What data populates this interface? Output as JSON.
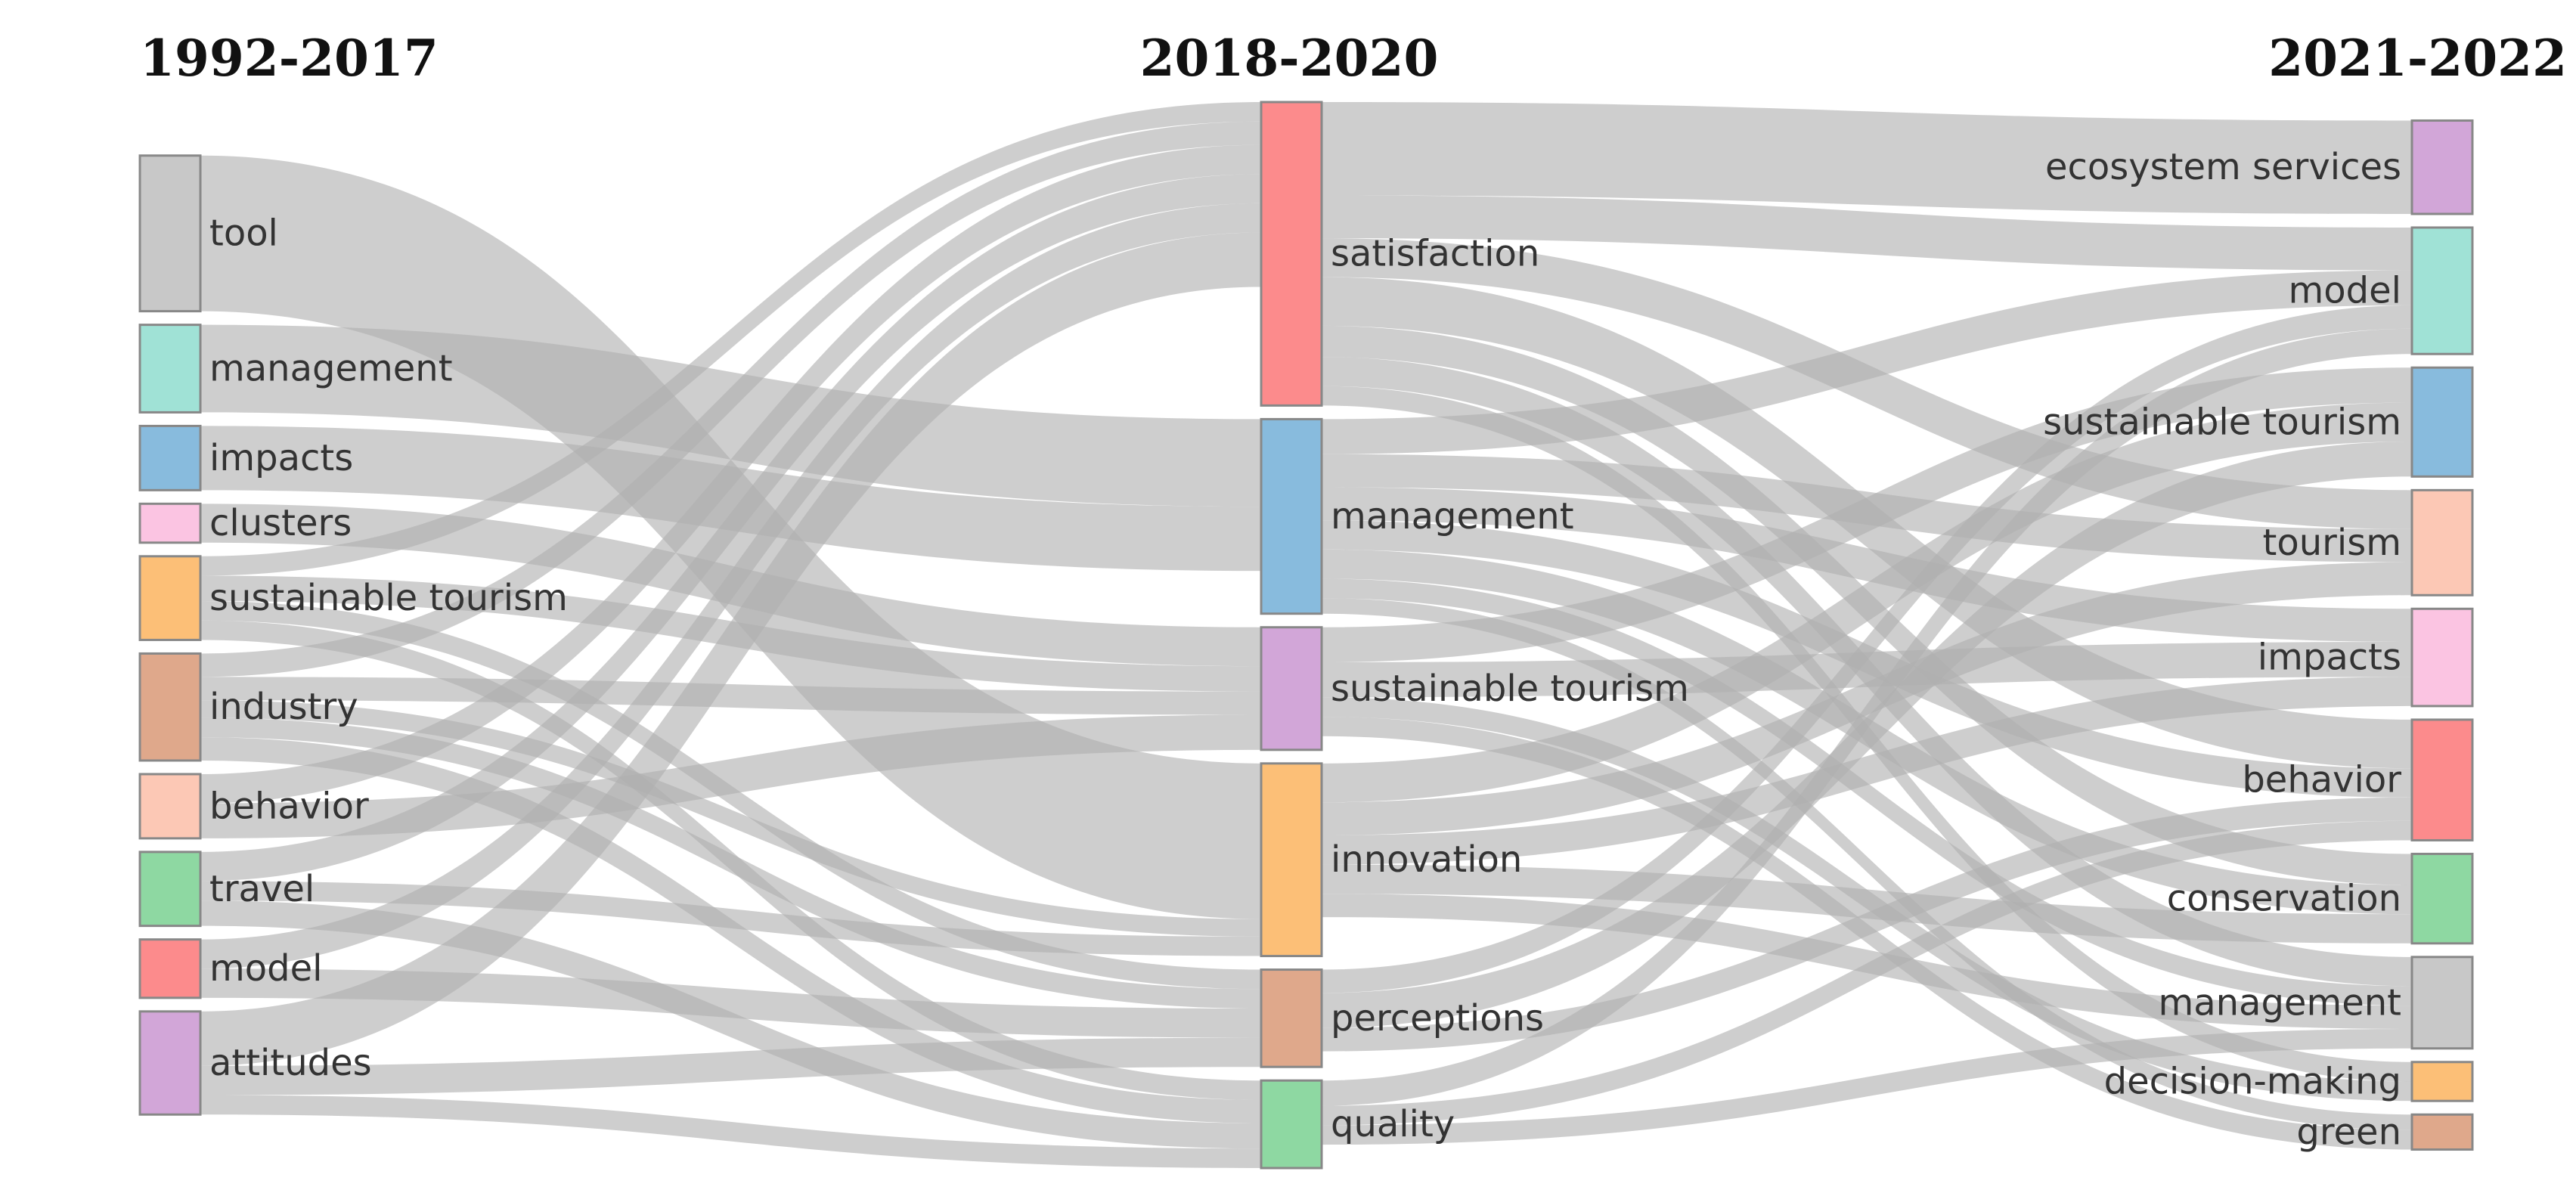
{
  "chart_data": {
    "type": "sankey",
    "columns": [
      {
        "title": "1992-2017",
        "nodes": [
          {
            "id": "c0_tool",
            "label": "tool",
            "color": "#c8c8c8"
          },
          {
            "id": "c0_management",
            "label": "management",
            "color": "#a0e2d6"
          },
          {
            "id": "c0_impacts",
            "label": "impacts",
            "color": "#88bbdd"
          },
          {
            "id": "c0_clusters",
            "label": "clusters",
            "color": "#fbc4e2"
          },
          {
            "id": "c0_sustainable_tourism",
            "label": "sustainable tourism",
            "color": "#fcbf77"
          },
          {
            "id": "c0_industry",
            "label": "industry",
            "color": "#dfa88b"
          },
          {
            "id": "c0_behavior",
            "label": "behavior",
            "color": "#fcc8b5"
          },
          {
            "id": "c0_travel",
            "label": "travel",
            "color": "#8ed8a2"
          },
          {
            "id": "c0_model",
            "label": "model",
            "color": "#fc8b8c"
          },
          {
            "id": "c0_attitudes",
            "label": "attitudes",
            "color": "#d2a6d8"
          }
        ]
      },
      {
        "title": "2018-2020",
        "nodes": [
          {
            "id": "c1_satisfaction",
            "label": "satisfaction",
            "color": "#fc8b8c"
          },
          {
            "id": "c1_management",
            "label": "management",
            "color": "#88bbdd"
          },
          {
            "id": "c1_sustainable_tourism",
            "label": "sustainable tourism",
            "color": "#d2a6d8"
          },
          {
            "id": "c1_innovation",
            "label": "innovation",
            "color": "#fcbf77"
          },
          {
            "id": "c1_perceptions",
            "label": "perceptions",
            "color": "#dfa88b"
          },
          {
            "id": "c1_quality",
            "label": "quality",
            "color": "#8ed8a2"
          }
        ]
      },
      {
        "title": "2021-2022",
        "nodes": [
          {
            "id": "c2_ecosystem_services",
            "label": "ecosystem services",
            "color": "#d2a6d8"
          },
          {
            "id": "c2_model",
            "label": "model",
            "color": "#a0e2d6"
          },
          {
            "id": "c2_sustainable_tourism",
            "label": "sustainable tourism",
            "color": "#88bbdd"
          },
          {
            "id": "c2_tourism",
            "label": "tourism",
            "color": "#fcc8b5"
          },
          {
            "id": "c2_impacts",
            "label": "impacts",
            "color": "#fbc4e2"
          },
          {
            "id": "c2_behavior",
            "label": "behavior",
            "color": "#fc8b8c"
          },
          {
            "id": "c2_conservation",
            "label": "conservation",
            "color": "#8ed8a2"
          },
          {
            "id": "c2_management",
            "label": "management",
            "color": "#c8c8c8"
          },
          {
            "id": "c2_decision_making",
            "label": "decision-making",
            "color": "#fcbf77"
          },
          {
            "id": "c2_green",
            "label": "green",
            "color": "#dfa88b"
          }
        ]
      }
    ],
    "links": [
      {
        "source": "c0_tool",
        "target": "c1_innovation",
        "value": 80
      },
      {
        "source": "c0_management",
        "target": "c1_management",
        "value": 45
      },
      {
        "source": "c0_impacts",
        "target": "c1_management",
        "value": 33
      },
      {
        "source": "c0_clusters",
        "target": "c1_sustainable_tourism",
        "value": 20
      },
      {
        "source": "c0_sustainable_tourism",
        "target": "c1_satisfaction",
        "value": 10
      },
      {
        "source": "c0_sustainable_tourism",
        "target": "c1_sustainable_tourism",
        "value": 13
      },
      {
        "source": "c0_sustainable_tourism",
        "target": "c1_quality",
        "value": 10
      },
      {
        "source": "c0_sustainable_tourism",
        "target": "c1_perceptions",
        "value": 10
      },
      {
        "source": "c0_industry",
        "target": "c1_satisfaction",
        "value": 12
      },
      {
        "source": "c0_industry",
        "target": "c1_sustainable_tourism",
        "value": 12
      },
      {
        "source": "c0_industry",
        "target": "c1_innovation",
        "value": 9
      },
      {
        "source": "c0_industry",
        "target": "c1_quality",
        "value": 12
      },
      {
        "source": "c0_industry",
        "target": "c1_perceptions",
        "value": 10
      },
      {
        "source": "c0_behavior",
        "target": "c1_satisfaction",
        "value": 15
      },
      {
        "source": "c0_behavior",
        "target": "c1_sustainable_tourism",
        "value": 18
      },
      {
        "source": "c0_travel",
        "target": "c1_satisfaction",
        "value": 15
      },
      {
        "source": "c0_travel",
        "target": "c1_innovation",
        "value": 10
      },
      {
        "source": "c0_travel",
        "target": "c1_quality",
        "value": 13
      },
      {
        "source": "c0_model",
        "target": "c1_satisfaction",
        "value": 15
      },
      {
        "source": "c0_model",
        "target": "c1_perceptions",
        "value": 15
      },
      {
        "source": "c0_attitudes",
        "target": "c1_satisfaction",
        "value": 28
      },
      {
        "source": "c0_attitudes",
        "target": "c1_perceptions",
        "value": 15
      },
      {
        "source": "c0_attitudes",
        "target": "c1_quality",
        "value": 10
      },
      {
        "source": "c1_satisfaction",
        "target": "c2_ecosystem_services",
        "value": 48
      },
      {
        "source": "c1_satisfaction",
        "target": "c2_model",
        "value": 22
      },
      {
        "source": "c1_satisfaction",
        "target": "c2_tourism",
        "value": 20
      },
      {
        "source": "c1_satisfaction",
        "target": "c2_behavior",
        "value": 25
      },
      {
        "source": "c1_satisfaction",
        "target": "c2_conservation",
        "value": 16
      },
      {
        "source": "c1_satisfaction",
        "target": "c2_management",
        "value": 15
      },
      {
        "source": "c1_satisfaction",
        "target": "c2_decision_making",
        "value": 10
      },
      {
        "source": "c1_management",
        "target": "c2_model",
        "value": 18
      },
      {
        "source": "c1_management",
        "target": "c2_tourism",
        "value": 17
      },
      {
        "source": "c1_management",
        "target": "c2_impacts",
        "value": 17
      },
      {
        "source": "c1_management",
        "target": "c2_behavior",
        "value": 15
      },
      {
        "source": "c1_management",
        "target": "c2_conservation",
        "value": 15
      },
      {
        "source": "c1_management",
        "target": "c2_management",
        "value": 10
      },
      {
        "source": "c1_management",
        "target": "c2_green",
        "value": 8
      },
      {
        "source": "c1_sustainable_tourism",
        "target": "c2_sustainable_tourism",
        "value": 18
      },
      {
        "source": "c1_sustainable_tourism",
        "target": "c2_impacts",
        "value": 18
      },
      {
        "source": "c1_sustainable_tourism",
        "target": "c2_decision_making",
        "value": 10
      },
      {
        "source": "c1_sustainable_tourism",
        "target": "c2_green",
        "value": 10
      },
      {
        "source": "c1_innovation",
        "target": "c2_sustainable_tourism",
        "value": 20
      },
      {
        "source": "c1_innovation",
        "target": "c2_tourism",
        "value": 17
      },
      {
        "source": "c1_innovation",
        "target": "c2_impacts",
        "value": 15
      },
      {
        "source": "c1_innovation",
        "target": "c2_conservation",
        "value": 15
      },
      {
        "source": "c1_innovation",
        "target": "c2_management",
        "value": 12
      },
      {
        "source": "c1_perceptions",
        "target": "c2_sustainable_tourism",
        "value": 18
      },
      {
        "source": "c1_perceptions",
        "target": "c2_model",
        "value": 12
      },
      {
        "source": "c1_perceptions",
        "target": "c2_behavior",
        "value": 12
      },
      {
        "source": "c1_quality",
        "target": "c2_model",
        "value": 13
      },
      {
        "source": "c1_quality",
        "target": "c2_behavior",
        "value": 10
      },
      {
        "source": "c1_quality",
        "target": "c2_management",
        "value": 10
      }
    ]
  }
}
